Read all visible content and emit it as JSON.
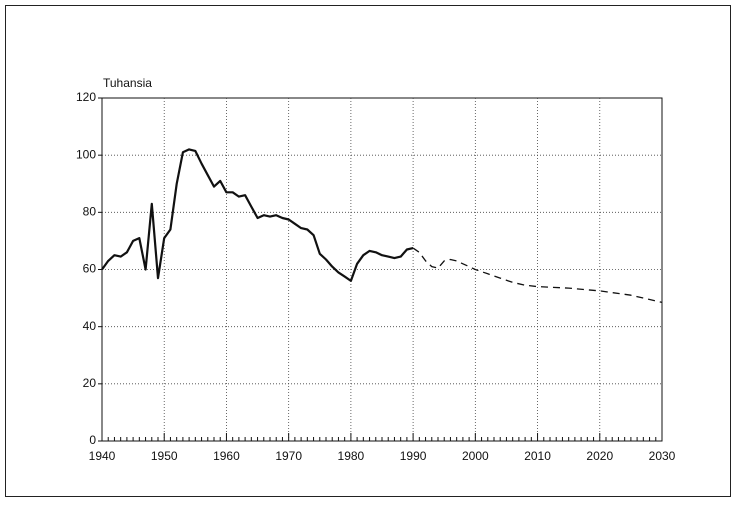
{
  "chart_data": {
    "type": "line",
    "y_label": "Tuhansia",
    "series": [
      {
        "name": null,
        "color": "#111111",
        "style": "solid",
        "x": [
          1940,
          1941,
          1942,
          1943,
          1944,
          1945,
          1946,
          1947,
          1948,
          1949,
          1950,
          1951,
          1952,
          1953,
          1954,
          1955,
          1956,
          1957,
          1958,
          1959,
          1960,
          1961,
          1962,
          1963,
          1964,
          1965,
          1966,
          1967,
          1968,
          1969,
          1970,
          1971,
          1972,
          1973,
          1974,
          1975,
          1976,
          1977,
          1978,
          1979,
          1980,
          1981,
          1982,
          1983,
          1984,
          1985,
          1986,
          1987,
          1988,
          1989,
          1990
        ],
        "values": [
          60,
          63,
          65,
          64.5,
          66,
          70,
          71,
          60,
          83,
          57,
          71,
          74,
          90,
          101,
          102,
          101.5,
          97,
          93,
          89,
          91,
          87,
          87,
          85.5,
          86,
          82,
          78,
          79,
          78.5,
          79,
          78,
          77.5,
          76,
          74.5,
          74,
          72,
          65.5,
          63.5,
          61,
          59,
          57.5,
          56,
          62,
          65,
          66.5,
          66,
          65,
          64.5,
          64,
          64.5,
          67,
          67.5
        ]
      },
      {
        "name": null,
        "color": "#111111",
        "style": "dashed",
        "x": [
          1990,
          1991,
          1992,
          1993,
          1994,
          1995,
          1996,
          1997,
          1998,
          1999,
          2000,
          2002,
          2004,
          2006,
          2008,
          2010,
          2015,
          2020,
          2025,
          2030
        ],
        "values": [
          67.5,
          66,
          63,
          61,
          60.5,
          63,
          63.5,
          63,
          62,
          61,
          60,
          58.5,
          57,
          55.5,
          54.5,
          54,
          53.5,
          52.5,
          51,
          48.5
        ]
      }
    ],
    "xlim": [
      1940,
      2030
    ],
    "xticks": [
      1940,
      1950,
      1960,
      1970,
      1980,
      1990,
      2000,
      2010,
      2020,
      2030
    ],
    "ylim": [
      0,
      120
    ],
    "yticks": [
      0,
      20,
      40,
      60,
      80,
      100,
      120
    ],
    "grid": true
  }
}
